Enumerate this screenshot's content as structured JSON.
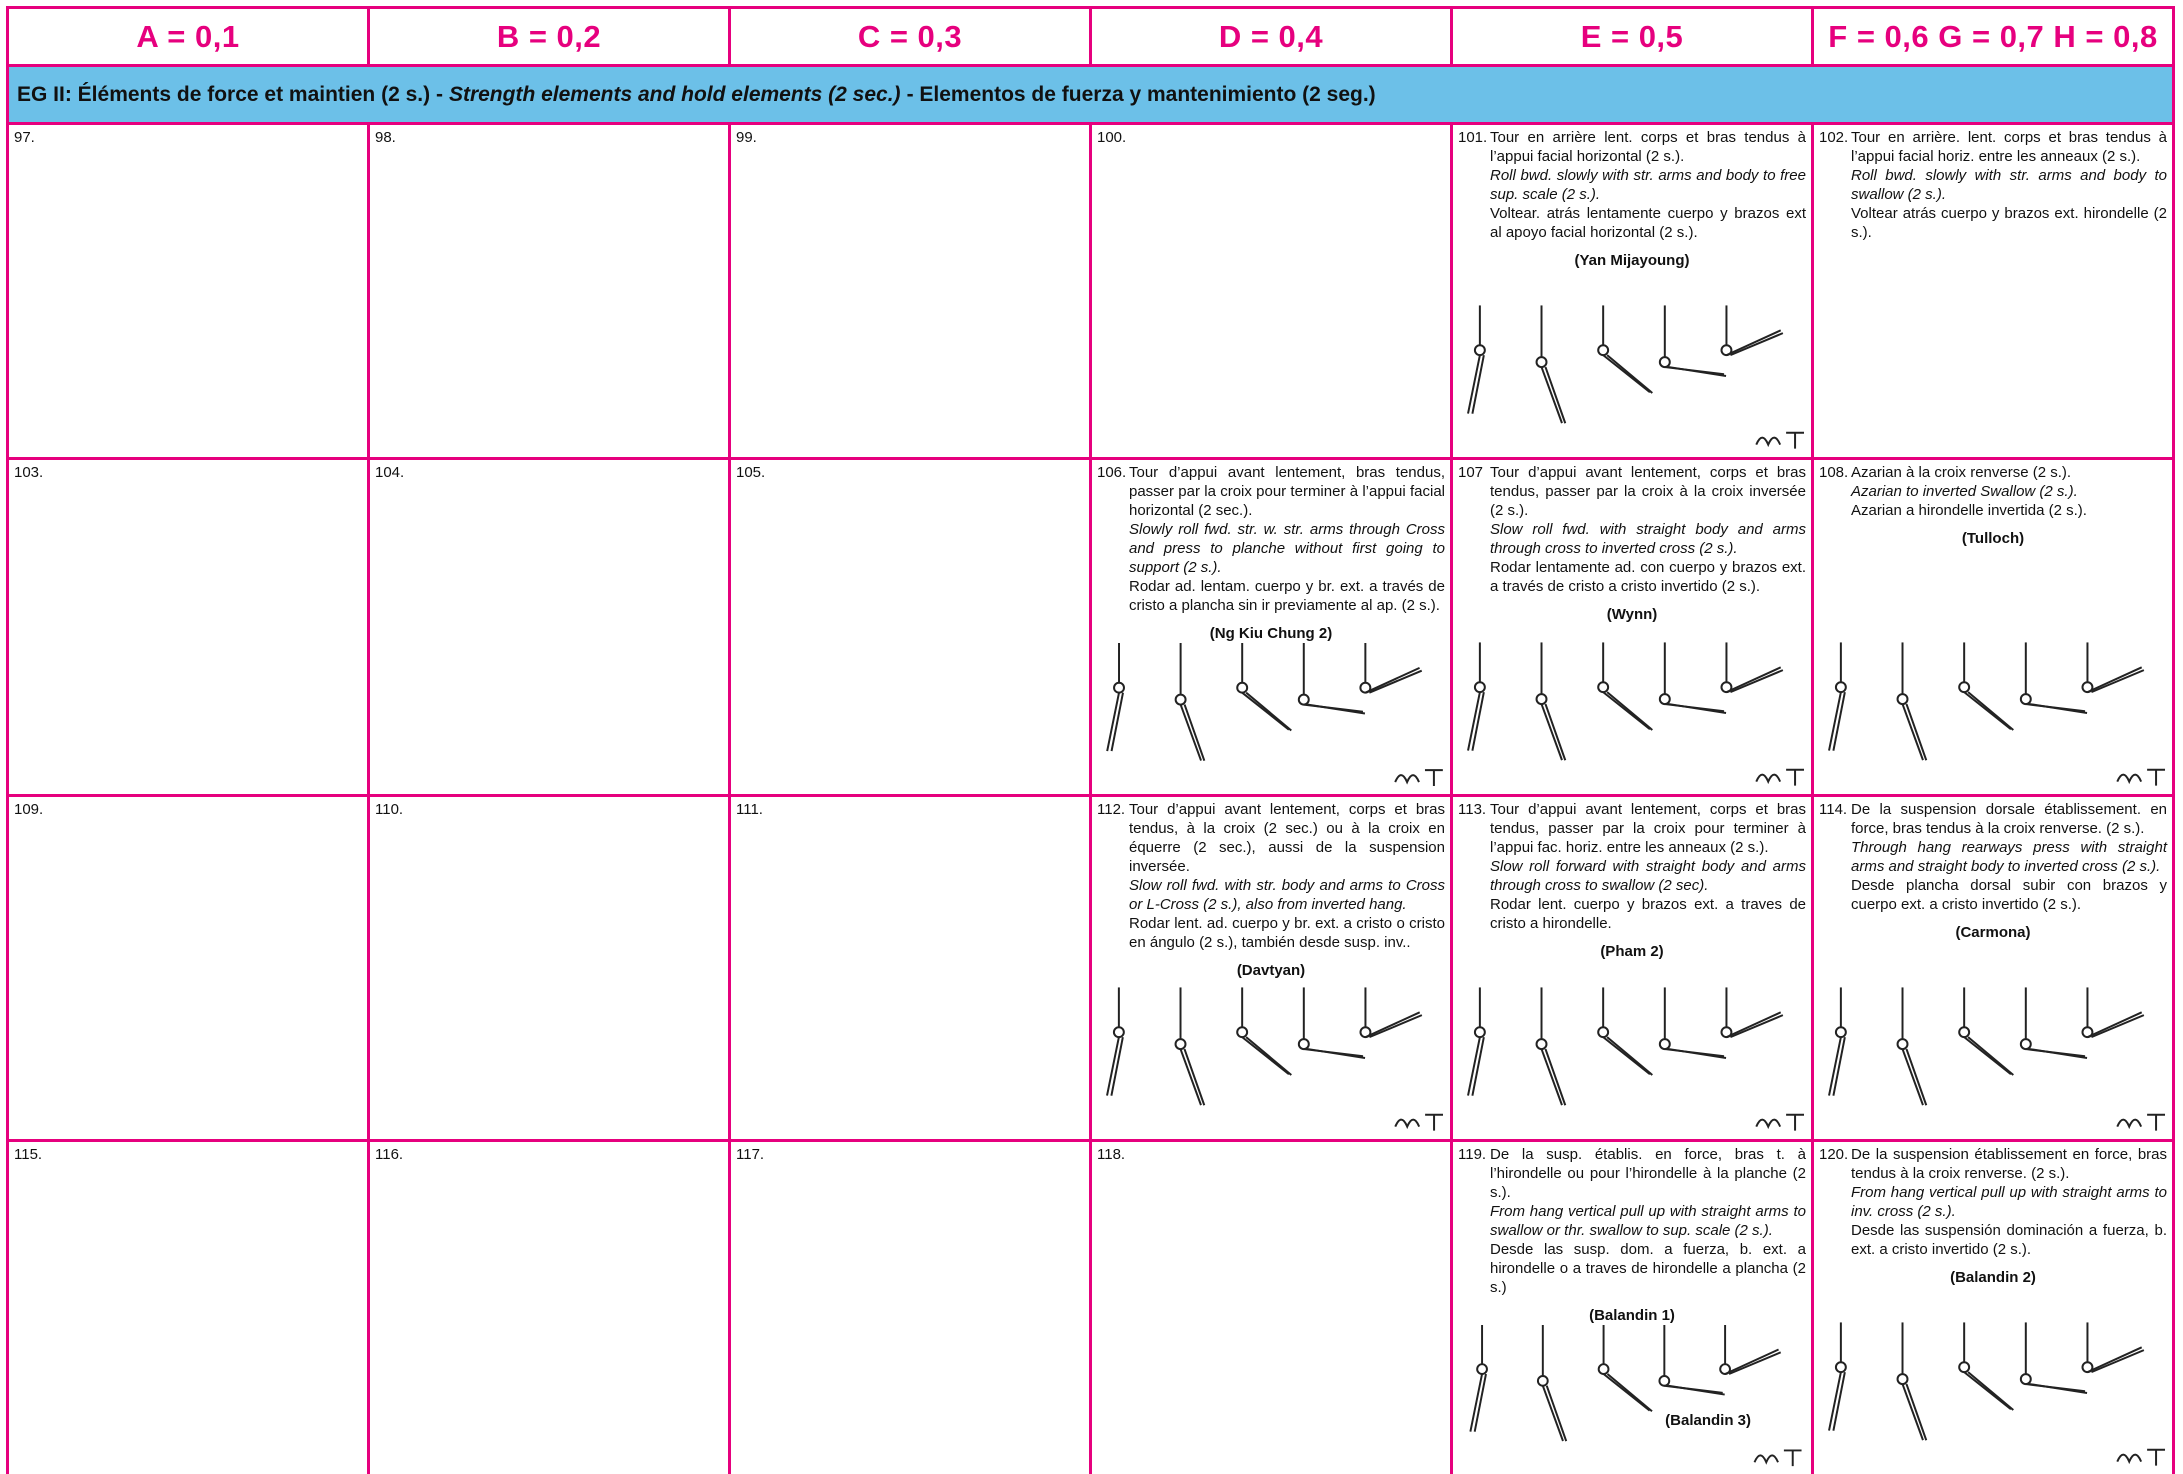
{
  "header": {
    "columns": [
      "A = 0,1",
      "B = 0,2",
      "C = 0,3",
      "D = 0,4",
      "E = 0,5",
      "F = 0,6 G = 0,7 H = 0,8"
    ]
  },
  "section_title": [
    "EG II:  Éléments de force et maintien (2 s.) -",
    "Strength elements and hold elements (2 sec.)",
    "- Elementos de fuerza y mantenimiento (2 seg.)"
  ],
  "rows": [
    {
      "cells": [
        {
          "number": "97."
        },
        {
          "number": "98."
        },
        {
          "number": "99."
        },
        {
          "number": "100."
        },
        {
          "number": "101.",
          "fr": "Tour en arrière lent. corps et bras tendus à l’appui facial horizontal (2 s.).",
          "en": "Roll bwd. slowly with str. arms and body to free sup. scale (2 s.).",
          "es": "Voltear. atrás lentamente cuerpo y brazos ext al apoyo facial horizontal (2 s.).",
          "names": [
            "(Yan Mijayoung)"
          ]
        },
        {
          "number": "102.",
          "fr": "Tour en arrière. lent. corps et bras tendus à l’appui facial horiz. entre les anneaux (2 s.).",
          "en": "Roll bwd. slowly with str. arms and body to swallow (2 s.).",
          "es": "Voltear atrás cuerpo y brazos ext. hirondelle (2 s.)."
        }
      ]
    },
    {
      "cells": [
        {
          "number": "103."
        },
        {
          "number": "104."
        },
        {
          "number": "105."
        },
        {
          "number": "106.",
          "fr": "Tour d’appui avant lentement, bras tendus, passer par la croix pour terminer à l’appui facial horizontal (2 sec.).",
          "en": "Slowly roll fwd. str. w. str. arms through Cross and press to planche without first going to support (2 s.).",
          "es": "Rodar ad. lentam. cuerpo y br. ext. a través de cristo a plancha sin ir previamente al ap. (2 s.).",
          "names": [
            "(Ng Kiu Chung 2)"
          ]
        },
        {
          "number": "107",
          "fr": "Tour d’appui avant lentement, corps et bras tendus, passer par la croix à la croix inversée (2 s.).",
          "en": "Slow roll fwd. with straight body and arms through cross to inverted cross (2 s.).",
          "es": "Rodar lentamente ad. con cuerpo y brazos ext. a través de cristo a cristo invertido (2 s.).",
          "names": [
            "(Wynn)"
          ]
        },
        {
          "number": "108.",
          "fr": "Azarian à la croix renverse (2 s.).",
          "en": "Azarian to inverted Swallow (2 s.).",
          "es": "Azarian a hirondelle invertida (2 s.).",
          "names": [
            "(Tulloch)"
          ]
        }
      ]
    },
    {
      "cells": [
        {
          "number": "109."
        },
        {
          "number": "110."
        },
        {
          "number": "111."
        },
        {
          "number": "112.",
          "fr": "Tour d’appui avant lentement, corps et bras tendus, à la croix (2 sec.) ou à la croix en équerre (2 sec.), aussi de la suspension inversée.",
          "en": "Slow roll fwd. with str. body and arms to Cross or L-Cross (2 s.), also from inverted hang.",
          "es": "Rodar lent. ad. cuerpo y br. ext. a cristo o cristo en ángulo (2 s.), también desde susp. inv..",
          "names": [
            "(Davtyan)"
          ]
        },
        {
          "number": "113.",
          "fr": "Tour d’appui avant lentement, corps et bras tendus, passer par la croix pour terminer à l’appui fac. horiz. entre les anneaux (2 s.).",
          "en": "Slow roll forward with straight body and arms through cross to swallow (2 sec).",
          "es": "Rodar lent. cuerpo y brazos ext. a traves de cristo a hirondelle.",
          "names": [
            "(Pham 2)"
          ]
        },
        {
          "number": "114.",
          "fr": "De la suspension dorsale établissement. en force, bras tendus à la croix renverse. (2 s.).",
          "en": "Through hang rearways press with straight arms and straight body to inverted cross (2 s.).",
          "es": "Desde plancha dorsal subir con brazos y cuerpo ext. a cristo invertido (2 s.).",
          "names": [
            "(Carmona)"
          ]
        }
      ]
    },
    {
      "cells": [
        {
          "number": "115."
        },
        {
          "number": "116."
        },
        {
          "number": "117."
        },
        {
          "number": "118."
        },
        {
          "number": "119.",
          "fr": "De la susp. établis. en force, bras t. à l’hirondelle ou pour l’hirondelle à la planche (2 s.).",
          "en": "From hang vertical pull up with straight arms to swallow or thr. swallow to sup. scale (2 s.).",
          "es": "Desde las susp. dom. a fuerza, b. ext. a hirondelle o a traves de hirondelle a plancha (2 s.)",
          "names": [
            "(Balandin 1)",
            "(Balandin 3)"
          ]
        },
        {
          "number": "120.",
          "fr": "De la suspension établissement en force, bras tendus à la croix renverse. (2 s.).",
          "en": "From hang vertical pull up with straight arms to inv. cross (2 s.).",
          "es": "Desde las suspensión dominación a fuerza, b. ext. a cristo invertido (2 s.).",
          "names": [
            "(Balandin 2)"
          ]
        }
      ]
    }
  ]
}
